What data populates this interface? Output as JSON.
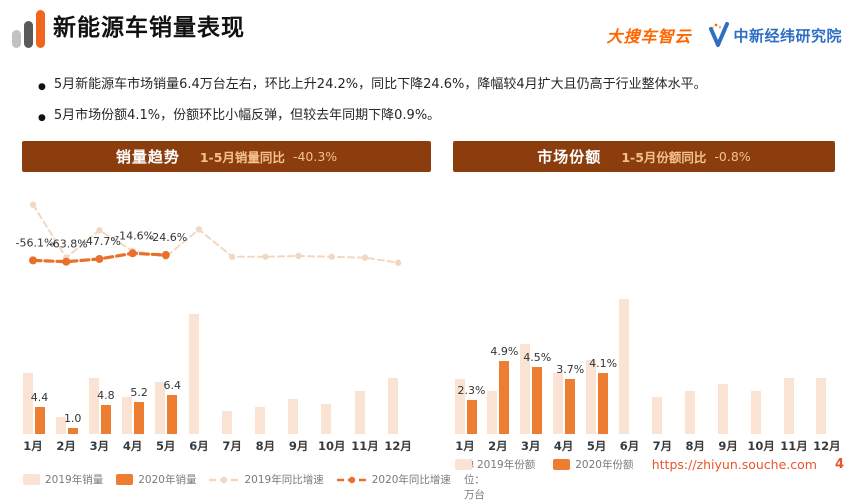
{
  "header": {
    "title": "新能源车销量表现",
    "logo_souche": "大搜车智云",
    "logo_jwview": "中新经纬研究院"
  },
  "bullets": [
    "5月新能源车市场销量6.4万台左右，环比上升24.2%，同比下降24.6%，降幅较4月扩大且仍高于行业整体水平。",
    "5月市场份额4.1%，份额环比小幅反弹，但较去年同期下降0.9%。"
  ],
  "panels": {
    "left": {
      "title": "销量趋势",
      "subtitle_label": "1-5月销量同比",
      "subtitle_value": "-40.3%"
    },
    "right": {
      "title": "市场份额",
      "subtitle_label": "1-5月份额同比",
      "subtitle_value": "-0.8%"
    }
  },
  "chart_data": [
    {
      "type": "bar",
      "title": "销量趋势",
      "unit_note": "单位：万台",
      "categories": [
        "1月",
        "2月",
        "3月",
        "4月",
        "5月",
        "6月",
        "7月",
        "8月",
        "9月",
        "10月",
        "11月",
        "12月"
      ],
      "series": [
        {
          "name": "2019年销量",
          "kind": "bar",
          "color_key": "light",
          "values": [
            10.0,
            2.8,
            9.2,
            6.1,
            8.5,
            19.7,
            3.8,
            4.5,
            5.8,
            5.0,
            7.0,
            9.2
          ],
          "values_estimated": true
        },
        {
          "name": "2020年销量",
          "kind": "bar",
          "color_key": "orange",
          "values": [
            4.4,
            1.0,
            4.8,
            5.2,
            6.4
          ],
          "labels": [
            "4.4",
            "1.0",
            "4.8",
            "5.2",
            "6.4"
          ]
        },
        {
          "name": "2019年同比增速",
          "kind": "line",
          "color_key": "light",
          "values_pct": [
            270,
            -40,
            120,
            0,
            -35,
            125,
            -35,
            -35,
            -30,
            -35,
            -40,
            -70
          ],
          "values_estimated": true
        },
        {
          "name": "2020年同比增速",
          "kind": "line",
          "color_key": "orange",
          "values_pct": [
            -56.1,
            -63.8,
            -47.7,
            -14.6,
            -24.6
          ],
          "labels": [
            "-56.1%",
            "-63.8%",
            "-47.7%",
            "-14.6%",
            "-24.6%"
          ]
        }
      ],
      "legend": [
        {
          "label": "2019年销量",
          "swatch": "square",
          "color_key": "light"
        },
        {
          "label": "2020年销量",
          "swatch": "square",
          "color_key": "orange"
        },
        {
          "label": "2019年同比增速",
          "swatch": "line",
          "color_key": "light"
        },
        {
          "label": "2020年同比增速",
          "swatch": "line",
          "color_key": "orange"
        }
      ]
    },
    {
      "type": "bar",
      "title": "市场份额",
      "categories": [
        "1月",
        "2月",
        "3月",
        "4月",
        "5月",
        "6月",
        "7月",
        "8月",
        "9月",
        "10月",
        "11月",
        "12月"
      ],
      "series": [
        {
          "name": "2019年份额",
          "kind": "bar",
          "color_key": "light",
          "values": [
            3.7,
            2.9,
            6.1,
            4.1,
            5.0,
            9.1,
            2.5,
            2.9,
            3.4,
            2.9,
            3.8,
            3.8
          ],
          "values_estimated": true
        },
        {
          "name": "2020年份额",
          "kind": "bar",
          "color_key": "orange",
          "values": [
            2.3,
            4.9,
            4.5,
            3.7,
            4.1
          ],
          "labels": [
            "2.3%",
            "4.9%",
            "4.5%",
            "3.7%",
            "4.1%"
          ]
        }
      ],
      "legend": [
        {
          "label": "2019年份额",
          "swatch": "square",
          "color_key": "light"
        },
        {
          "label": "2020年份额",
          "swatch": "square",
          "color_key": "orange"
        }
      ]
    }
  ],
  "footer": {
    "url": "https://zhiyun.souche.com",
    "page": "4"
  },
  "colors": {
    "orange": "#ed7d31",
    "light": "#fae3d3",
    "line_orange": "#e8702a",
    "line_light": "#f3d8c0",
    "header_bg": "#8b3d0e",
    "header_subtitle": "#f4c28f",
    "accent_url": "#e9552f"
  }
}
